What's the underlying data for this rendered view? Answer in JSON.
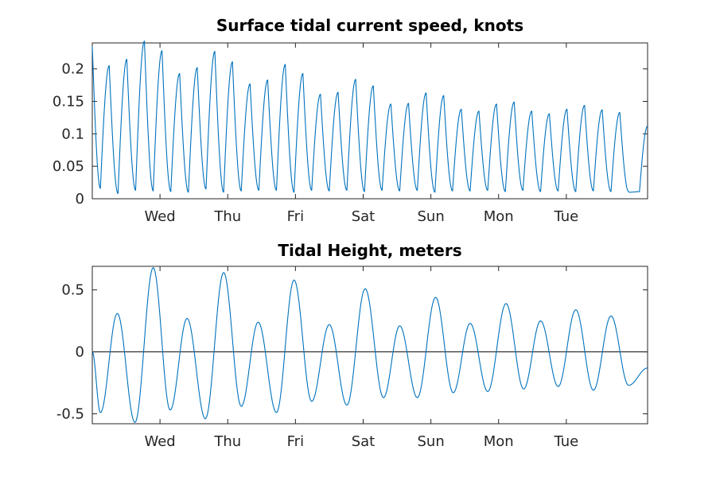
{
  "colors": {
    "series": "#0072bd",
    "axes": "#262626",
    "zero_line": "#262626",
    "background": "#ffffff"
  },
  "chart_data": [
    {
      "type": "line",
      "title": "Surface tidal current speed, knots",
      "xlabel": "",
      "ylabel": "",
      "x_unit": "days",
      "xlim": [
        0,
        8.2
      ],
      "ylim": [
        0,
        0.24
      ],
      "yticks": [
        0,
        0.05,
        0.1,
        0.15,
        0.2
      ],
      "ytick_labels": [
        "0",
        "0.05",
        "0.1",
        "0.15",
        "0.2"
      ],
      "xticks": [
        1,
        2,
        3,
        4,
        5,
        6,
        7
      ],
      "xtick_labels": [
        "Wed",
        "Thu",
        "Fri",
        "Sat",
        "Sun",
        "Mon",
        "Tue"
      ],
      "grid": false,
      "legend": "none",
      "series": [
        {
          "peaks": [
            [
              0.0,
              0.235
            ],
            [
              0.25,
              0.205
            ],
            [
              0.51,
              0.215
            ],
            [
              0.77,
              0.243
            ],
            [
              1.03,
              0.228
            ],
            [
              1.29,
              0.193
            ],
            [
              1.55,
              0.202
            ],
            [
              1.81,
              0.227
            ],
            [
              2.07,
              0.211
            ],
            [
              2.33,
              0.177
            ],
            [
              2.59,
              0.183
            ],
            [
              2.85,
              0.207
            ],
            [
              3.11,
              0.193
            ],
            [
              3.37,
              0.161
            ],
            [
              3.63,
              0.164
            ],
            [
              3.89,
              0.184
            ],
            [
              4.15,
              0.174
            ],
            [
              4.41,
              0.146
            ],
            [
              4.67,
              0.147
            ],
            [
              4.93,
              0.163
            ],
            [
              5.19,
              0.159
            ],
            [
              5.45,
              0.138
            ],
            [
              5.71,
              0.135
            ],
            [
              5.97,
              0.146
            ],
            [
              6.23,
              0.149
            ],
            [
              6.49,
              0.135
            ],
            [
              6.75,
              0.131
            ],
            [
              7.01,
              0.138
            ],
            [
              7.27,
              0.144
            ],
            [
              7.53,
              0.137
            ],
            [
              7.79,
              0.133
            ],
            [
              8.2,
              0.112
            ]
          ],
          "troughs": [
            [
              0.12,
              0.016
            ],
            [
              0.38,
              0.008
            ],
            [
              0.64,
              0.013
            ],
            [
              0.9,
              0.012
            ],
            [
              1.16,
              0.011
            ],
            [
              1.42,
              0.01
            ],
            [
              1.68,
              0.015
            ],
            [
              1.94,
              0.01
            ],
            [
              2.2,
              0.012
            ],
            [
              2.46,
              0.013
            ],
            [
              2.72,
              0.013
            ],
            [
              2.98,
              0.01
            ],
            [
              3.24,
              0.013
            ],
            [
              3.5,
              0.012
            ],
            [
              3.76,
              0.013
            ],
            [
              4.02,
              0.011
            ],
            [
              4.28,
              0.013
            ],
            [
              4.54,
              0.012
            ],
            [
              4.8,
              0.013
            ],
            [
              5.06,
              0.01
            ],
            [
              5.32,
              0.012
            ],
            [
              5.58,
              0.012
            ],
            [
              5.84,
              0.013
            ],
            [
              6.1,
              0.011
            ],
            [
              6.36,
              0.013
            ],
            [
              6.62,
              0.011
            ],
            [
              6.88,
              0.012
            ],
            [
              7.14,
              0.011
            ],
            [
              7.4,
              0.012
            ],
            [
              7.66,
              0.011
            ],
            [
              7.92,
              0.011
            ],
            [
              8.08,
              0.01
            ]
          ]
        }
      ]
    },
    {
      "type": "line",
      "title": "Tidal Height, meters",
      "xlabel": "",
      "ylabel": "",
      "x_unit": "days",
      "xlim": [
        0,
        8.2
      ],
      "ylim": [
        -0.58,
        0.69
      ],
      "yticks": [
        -0.5,
        0,
        0.5
      ],
      "ytick_labels": [
        "-0.5",
        "0",
        "0.5"
      ],
      "xticks": [
        1,
        2,
        3,
        4,
        5,
        6,
        7
      ],
      "xtick_labels": [
        "Wed",
        "Thu",
        "Fri",
        "Sat",
        "Sun",
        "Mon",
        "Tue"
      ],
      "grid": false,
      "legend": "none",
      "zero_line": true,
      "series": [
        {
          "extrema": [
            [
              0.0,
              0.0
            ],
            [
              0.12,
              -0.49
            ],
            [
              0.37,
              0.31
            ],
            [
              0.63,
              -0.57
            ],
            [
              0.9,
              0.68
            ],
            [
              1.15,
              -0.47
            ],
            [
              1.4,
              0.27
            ],
            [
              1.67,
              -0.54
            ],
            [
              1.94,
              0.64
            ],
            [
              2.2,
              -0.44
            ],
            [
              2.45,
              0.24
            ],
            [
              2.72,
              -0.49
            ],
            [
              2.98,
              0.58
            ],
            [
              3.24,
              -0.4
            ],
            [
              3.5,
              0.22
            ],
            [
              3.76,
              -0.43
            ],
            [
              4.03,
              0.51
            ],
            [
              4.3,
              -0.37
            ],
            [
              4.54,
              0.21
            ],
            [
              4.8,
              -0.37
            ],
            [
              5.07,
              0.44
            ],
            [
              5.33,
              -0.33
            ],
            [
              5.58,
              0.23
            ],
            [
              5.84,
              -0.32
            ],
            [
              6.11,
              0.39
            ],
            [
              6.37,
              -0.3
            ],
            [
              6.62,
              0.25
            ],
            [
              6.88,
              -0.28
            ],
            [
              7.14,
              0.34
            ],
            [
              7.4,
              -0.31
            ],
            [
              7.66,
              0.29
            ],
            [
              7.92,
              -0.27
            ],
            [
              8.2,
              -0.13
            ]
          ]
        }
      ]
    }
  ]
}
